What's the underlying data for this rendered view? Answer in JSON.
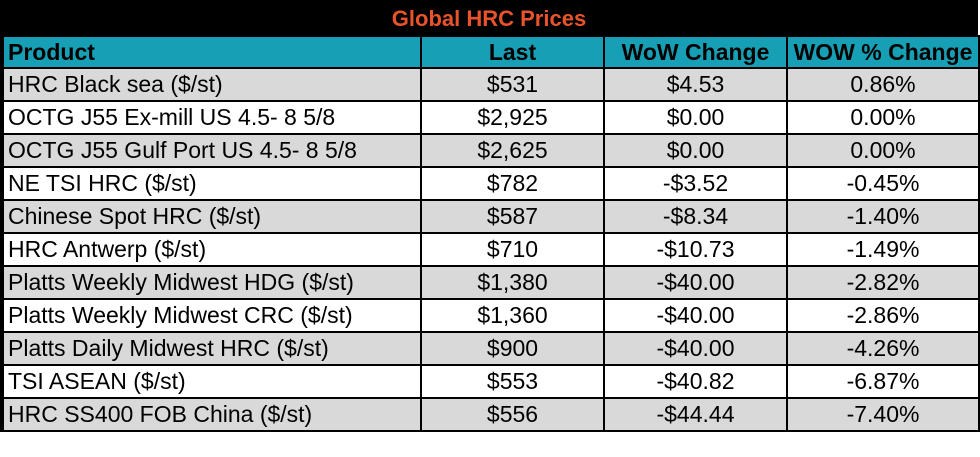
{
  "title": "Global HRC Prices",
  "colors": {
    "title_bg": "#000000",
    "title_text": "#e8532b",
    "header_bg": "#17a0b5",
    "row_shade": "#d9d9d9",
    "row_plain": "#ffffff"
  },
  "headers": {
    "product": "Product",
    "last": "Last",
    "wow_change": "WoW Change",
    "wow_pct": "WOW % Change"
  },
  "rows": [
    {
      "product": "HRC Black sea ($/st)",
      "last": "$531",
      "wow_change": "$4.53",
      "wow_pct": "0.86%"
    },
    {
      "product": "OCTG J55 Ex-mill US 4.5- 8 5/8",
      "last": "$2,925",
      "wow_change": "$0.00",
      "wow_pct": "0.00%"
    },
    {
      "product": "OCTG J55 Gulf Port US 4.5- 8 5/8",
      "last": "$2,625",
      "wow_change": "$0.00",
      "wow_pct": "0.00%"
    },
    {
      "product": "NE TSI HRC ($/st)",
      "last": "$782",
      "wow_change": "-$3.52",
      "wow_pct": "-0.45%"
    },
    {
      "product": "Chinese Spot HRC ($/st)",
      "last": "$587",
      "wow_change": "-$8.34",
      "wow_pct": "-1.40%"
    },
    {
      "product": "HRC Antwerp ($/st)",
      "last": "$710",
      "wow_change": "-$10.73",
      "wow_pct": "-1.49%"
    },
    {
      "product": "Platts Weekly Midwest HDG ($/st)",
      "last": "$1,380",
      "wow_change": "-$40.00",
      "wow_pct": "-2.82%"
    },
    {
      "product": "Platts Weekly Midwest CRC ($/st)",
      "last": "$1,360",
      "wow_change": "-$40.00",
      "wow_pct": "-2.86%"
    },
    {
      "product": "Platts Daily Midwest HRC ($/st)",
      "last": "$900",
      "wow_change": "-$40.00",
      "wow_pct": "-4.26%"
    },
    {
      "product": "TSI ASEAN ($/st)",
      "last": "$553",
      "wow_change": "-$40.82",
      "wow_pct": "-6.87%"
    },
    {
      "product": "HRC SS400 FOB China ($/st)",
      "last": "$556",
      "wow_change": "-$44.44",
      "wow_pct": "-7.40%"
    }
  ]
}
